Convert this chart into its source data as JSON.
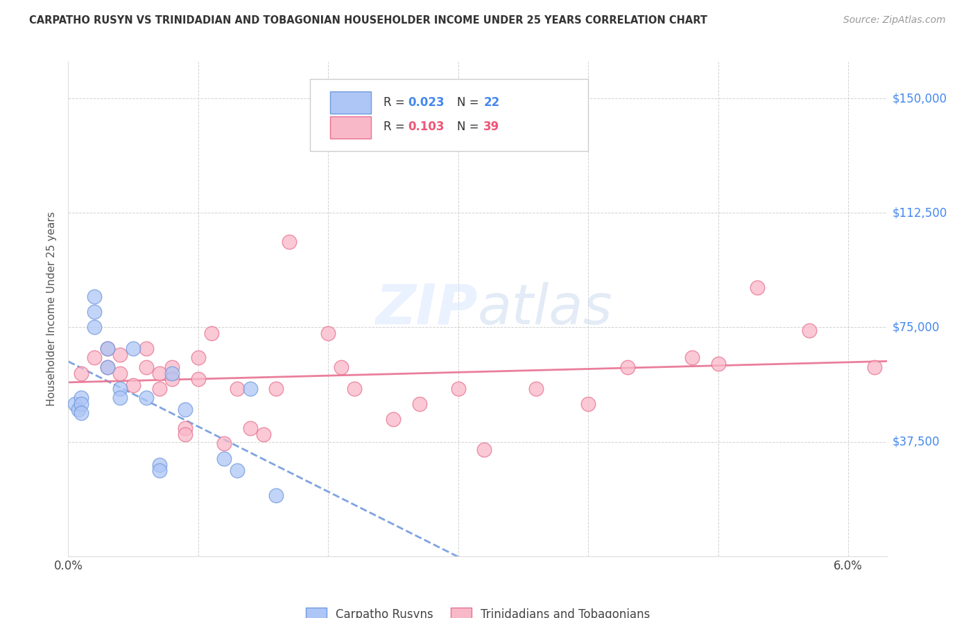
{
  "title": "CARPATHO RUSYN VS TRINIDADIAN AND TOBAGONIAN HOUSEHOLDER INCOME UNDER 25 YEARS CORRELATION CHART",
  "source": "Source: ZipAtlas.com",
  "ylabel": "Householder Income Under 25 years",
  "legend_label1": "Carpatho Rusyns",
  "legend_label2": "Trinidadians and Tobagonians",
  "watermark": "ZIPatlas",
  "blue_color": "#aec6f6",
  "pink_color": "#f9b8c8",
  "blue_edge_color": "#7099dd",
  "pink_edge_color": "#e87090",
  "blue_line_color": "#7099dd",
  "pink_line_color": "#e87090",
  "ytick_labels": [
    "$37,500",
    "$75,000",
    "$112,500",
    "$150,000"
  ],
  "ytick_values": [
    37500,
    75000,
    112500,
    150000
  ],
  "ylim": [
    0,
    162000
  ],
  "xlim": [
    0.0,
    0.063
  ],
  "xtick_positions": [
    0.0,
    0.01,
    0.02,
    0.03,
    0.04,
    0.05,
    0.06
  ],
  "blue_x": [
    0.0005,
    0.0008,
    0.001,
    0.001,
    0.001,
    0.002,
    0.002,
    0.002,
    0.003,
    0.003,
    0.004,
    0.004,
    0.005,
    0.006,
    0.007,
    0.007,
    0.008,
    0.009,
    0.012,
    0.013,
    0.014,
    0.016
  ],
  "blue_y": [
    50000,
    48000,
    52000,
    50000,
    47000,
    85000,
    80000,
    75000,
    68000,
    62000,
    55000,
    52000,
    68000,
    52000,
    30000,
    28000,
    60000,
    48000,
    32000,
    28000,
    55000,
    20000
  ],
  "pink_x": [
    0.001,
    0.002,
    0.003,
    0.003,
    0.004,
    0.004,
    0.005,
    0.006,
    0.006,
    0.007,
    0.007,
    0.008,
    0.008,
    0.009,
    0.009,
    0.01,
    0.01,
    0.011,
    0.012,
    0.013,
    0.014,
    0.015,
    0.016,
    0.017,
    0.02,
    0.021,
    0.022,
    0.025,
    0.027,
    0.03,
    0.032,
    0.036,
    0.04,
    0.043,
    0.048,
    0.05,
    0.053,
    0.057,
    0.062
  ],
  "pink_y": [
    60000,
    65000,
    68000,
    62000,
    66000,
    60000,
    56000,
    68000,
    62000,
    60000,
    55000,
    62000,
    58000,
    42000,
    40000,
    65000,
    58000,
    73000,
    37000,
    55000,
    42000,
    40000,
    55000,
    103000,
    73000,
    62000,
    55000,
    45000,
    50000,
    55000,
    35000,
    55000,
    50000,
    62000,
    65000,
    63000,
    88000,
    74000,
    62000
  ],
  "legend_r1": "0.023",
  "legend_n1": "22",
  "legend_r2": "0.103",
  "legend_n2": "39",
  "r_color": "#4488ee",
  "n_color": "#4488ee",
  "r2_color": "#ee5577",
  "n2_color": "#ee5577"
}
